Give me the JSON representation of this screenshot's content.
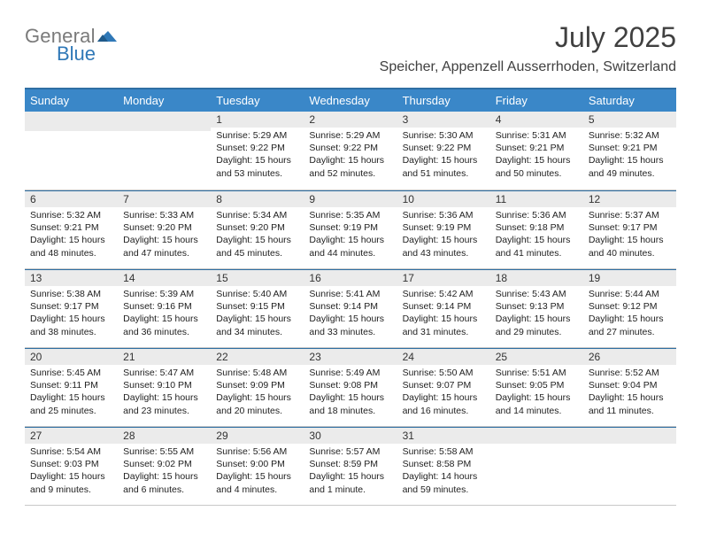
{
  "logo": {
    "gray": "General",
    "blue": "Blue"
  },
  "title": "July 2025",
  "location": "Speicher, Appenzell Ausserrhoden, Switzerland",
  "colors": {
    "header_bg": "#3a87c8",
    "header_border_top": "#2f6fa3",
    "daynum_bg": "#ebebeb",
    "text": "#404040"
  },
  "weekdays": [
    "Sunday",
    "Monday",
    "Tuesday",
    "Wednesday",
    "Thursday",
    "Friday",
    "Saturday"
  ],
  "weeks": [
    [
      {
        "n": "",
        "sun": "",
        "set": "",
        "day": ""
      },
      {
        "n": "",
        "sun": "",
        "set": "",
        "day": ""
      },
      {
        "n": "1",
        "sun": "Sunrise: 5:29 AM",
        "set": "Sunset: 9:22 PM",
        "day": "Daylight: 15 hours and 53 minutes."
      },
      {
        "n": "2",
        "sun": "Sunrise: 5:29 AM",
        "set": "Sunset: 9:22 PM",
        "day": "Daylight: 15 hours and 52 minutes."
      },
      {
        "n": "3",
        "sun": "Sunrise: 5:30 AM",
        "set": "Sunset: 9:22 PM",
        "day": "Daylight: 15 hours and 51 minutes."
      },
      {
        "n": "4",
        "sun": "Sunrise: 5:31 AM",
        "set": "Sunset: 9:21 PM",
        "day": "Daylight: 15 hours and 50 minutes."
      },
      {
        "n": "5",
        "sun": "Sunrise: 5:32 AM",
        "set": "Sunset: 9:21 PM",
        "day": "Daylight: 15 hours and 49 minutes."
      }
    ],
    [
      {
        "n": "6",
        "sun": "Sunrise: 5:32 AM",
        "set": "Sunset: 9:21 PM",
        "day": "Daylight: 15 hours and 48 minutes."
      },
      {
        "n": "7",
        "sun": "Sunrise: 5:33 AM",
        "set": "Sunset: 9:20 PM",
        "day": "Daylight: 15 hours and 47 minutes."
      },
      {
        "n": "8",
        "sun": "Sunrise: 5:34 AM",
        "set": "Sunset: 9:20 PM",
        "day": "Daylight: 15 hours and 45 minutes."
      },
      {
        "n": "9",
        "sun": "Sunrise: 5:35 AM",
        "set": "Sunset: 9:19 PM",
        "day": "Daylight: 15 hours and 44 minutes."
      },
      {
        "n": "10",
        "sun": "Sunrise: 5:36 AM",
        "set": "Sunset: 9:19 PM",
        "day": "Daylight: 15 hours and 43 minutes."
      },
      {
        "n": "11",
        "sun": "Sunrise: 5:36 AM",
        "set": "Sunset: 9:18 PM",
        "day": "Daylight: 15 hours and 41 minutes."
      },
      {
        "n": "12",
        "sun": "Sunrise: 5:37 AM",
        "set": "Sunset: 9:17 PM",
        "day": "Daylight: 15 hours and 40 minutes."
      }
    ],
    [
      {
        "n": "13",
        "sun": "Sunrise: 5:38 AM",
        "set": "Sunset: 9:17 PM",
        "day": "Daylight: 15 hours and 38 minutes."
      },
      {
        "n": "14",
        "sun": "Sunrise: 5:39 AM",
        "set": "Sunset: 9:16 PM",
        "day": "Daylight: 15 hours and 36 minutes."
      },
      {
        "n": "15",
        "sun": "Sunrise: 5:40 AM",
        "set": "Sunset: 9:15 PM",
        "day": "Daylight: 15 hours and 34 minutes."
      },
      {
        "n": "16",
        "sun": "Sunrise: 5:41 AM",
        "set": "Sunset: 9:14 PM",
        "day": "Daylight: 15 hours and 33 minutes."
      },
      {
        "n": "17",
        "sun": "Sunrise: 5:42 AM",
        "set": "Sunset: 9:14 PM",
        "day": "Daylight: 15 hours and 31 minutes."
      },
      {
        "n": "18",
        "sun": "Sunrise: 5:43 AM",
        "set": "Sunset: 9:13 PM",
        "day": "Daylight: 15 hours and 29 minutes."
      },
      {
        "n": "19",
        "sun": "Sunrise: 5:44 AM",
        "set": "Sunset: 9:12 PM",
        "day": "Daylight: 15 hours and 27 minutes."
      }
    ],
    [
      {
        "n": "20",
        "sun": "Sunrise: 5:45 AM",
        "set": "Sunset: 9:11 PM",
        "day": "Daylight: 15 hours and 25 minutes."
      },
      {
        "n": "21",
        "sun": "Sunrise: 5:47 AM",
        "set": "Sunset: 9:10 PM",
        "day": "Daylight: 15 hours and 23 minutes."
      },
      {
        "n": "22",
        "sun": "Sunrise: 5:48 AM",
        "set": "Sunset: 9:09 PM",
        "day": "Daylight: 15 hours and 20 minutes."
      },
      {
        "n": "23",
        "sun": "Sunrise: 5:49 AM",
        "set": "Sunset: 9:08 PM",
        "day": "Daylight: 15 hours and 18 minutes."
      },
      {
        "n": "24",
        "sun": "Sunrise: 5:50 AM",
        "set": "Sunset: 9:07 PM",
        "day": "Daylight: 15 hours and 16 minutes."
      },
      {
        "n": "25",
        "sun": "Sunrise: 5:51 AM",
        "set": "Sunset: 9:05 PM",
        "day": "Daylight: 15 hours and 14 minutes."
      },
      {
        "n": "26",
        "sun": "Sunrise: 5:52 AM",
        "set": "Sunset: 9:04 PM",
        "day": "Daylight: 15 hours and 11 minutes."
      }
    ],
    [
      {
        "n": "27",
        "sun": "Sunrise: 5:54 AM",
        "set": "Sunset: 9:03 PM",
        "day": "Daylight: 15 hours and 9 minutes."
      },
      {
        "n": "28",
        "sun": "Sunrise: 5:55 AM",
        "set": "Sunset: 9:02 PM",
        "day": "Daylight: 15 hours and 6 minutes."
      },
      {
        "n": "29",
        "sun": "Sunrise: 5:56 AM",
        "set": "Sunset: 9:00 PM",
        "day": "Daylight: 15 hours and 4 minutes."
      },
      {
        "n": "30",
        "sun": "Sunrise: 5:57 AM",
        "set": "Sunset: 8:59 PM",
        "day": "Daylight: 15 hours and 1 minute."
      },
      {
        "n": "31",
        "sun": "Sunrise: 5:58 AM",
        "set": "Sunset: 8:58 PM",
        "day": "Daylight: 14 hours and 59 minutes."
      },
      {
        "n": "",
        "sun": "",
        "set": "",
        "day": ""
      },
      {
        "n": "",
        "sun": "",
        "set": "",
        "day": ""
      }
    ]
  ]
}
